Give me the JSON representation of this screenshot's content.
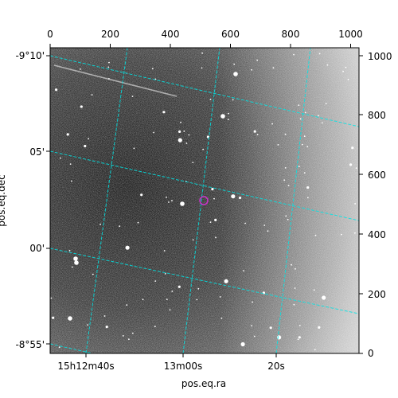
{
  "figure": {
    "x_axis_label": "pos.eq.ra",
    "y_axis_label": "pos.eq.dec",
    "top_ticks": [
      "0",
      "200",
      "400",
      "600",
      "800",
      "1000"
    ],
    "right_ticks": [
      "0",
      "200",
      "400",
      "600",
      "800",
      "1000"
    ],
    "ra_ticks": [
      "15h12m40s",
      "13m00s",
      "20s"
    ],
    "dec_ticks": [
      "-9°10'",
      "05'",
      "00'",
      "-8°55'"
    ]
  },
  "colors": {
    "grid": "#00e5e5",
    "marker": "#cc33cc",
    "frame": "#000000"
  }
}
